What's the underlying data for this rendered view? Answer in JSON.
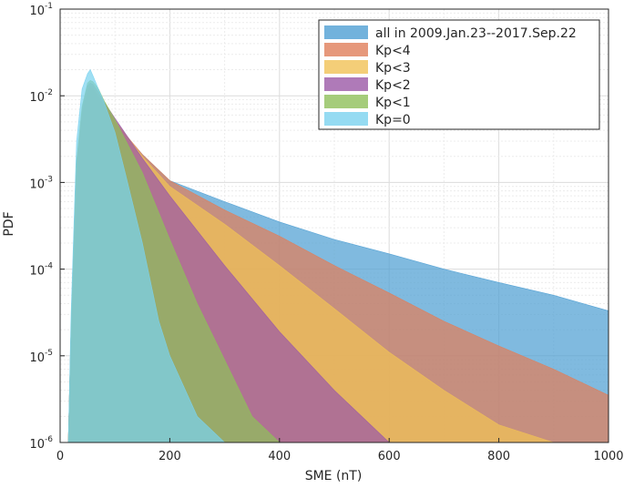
{
  "chart_data": {
    "type": "area",
    "title": "",
    "xlabel": "SME (nT)",
    "ylabel": "PDF",
    "xlim": [
      0,
      1000
    ],
    "ylim": [
      1e-06,
      0.1
    ],
    "yscale": "log",
    "grid": true,
    "legend_position": "top-right",
    "x_ticks": [
      0,
      200,
      400,
      600,
      800,
      1000
    ],
    "y_ticks": [
      {
        "value": 1e-06,
        "base": "10",
        "exp": "-6"
      },
      {
        "value": 1e-05,
        "base": "10",
        "exp": "-5"
      },
      {
        "value": 0.0001,
        "base": "10",
        "exp": "-4"
      },
      {
        "value": 0.001,
        "base": "10",
        "exp": "-3"
      },
      {
        "value": 0.01,
        "base": "10",
        "exp": "-2"
      },
      {
        "value": 0.1,
        "base": "10",
        "exp": "-1"
      }
    ],
    "series": [
      {
        "name": "all in 2009.Jan.23--2017.Sep.22",
        "color": "#4f9fd3",
        "x": [
          15,
          20,
          30,
          40,
          50,
          55,
          60,
          70,
          80,
          100,
          150,
          200,
          300,
          400,
          500,
          600,
          700,
          800,
          900,
          1000
        ],
        "y": [
          1e-06,
          2e-05,
          0.0015,
          0.006,
          0.011,
          0.012,
          0.0115,
          0.0095,
          0.0075,
          0.0048,
          0.0021,
          0.00105,
          0.0006,
          0.00035,
          0.00022,
          0.00015,
          0.0001,
          7e-05,
          5e-05,
          3.3e-05
        ]
      },
      {
        "name": "Kp<4",
        "color": "#e07e5a",
        "x": [
          15,
          20,
          30,
          40,
          50,
          55,
          60,
          70,
          80,
          100,
          150,
          200,
          300,
          400,
          500,
          600,
          700,
          800,
          900,
          1000
        ],
        "y": [
          1e-06,
          2e-05,
          0.0015,
          0.0062,
          0.0115,
          0.0125,
          0.012,
          0.0098,
          0.0078,
          0.005,
          0.0021,
          0.00105,
          0.00048,
          0.00024,
          0.00011,
          5.3e-05,
          2.5e-05,
          1.3e-05,
          7e-06,
          3.5e-06
        ]
      },
      {
        "name": "Kp<3",
        "color": "#f1c256",
        "x": [
          15,
          20,
          30,
          40,
          50,
          55,
          60,
          70,
          80,
          100,
          150,
          200,
          300,
          400,
          500,
          600,
          700,
          800,
          900,
          1000
        ],
        "y": [
          1e-06,
          2e-05,
          0.0016,
          0.0065,
          0.012,
          0.013,
          0.0125,
          0.01,
          0.008,
          0.0052,
          0.002,
          0.0009,
          0.00033,
          0.00011,
          3.5e-05,
          1.1e-05,
          4e-06,
          1.6e-06,
          1e-06,
          1e-06
        ]
      },
      {
        "name": "Kp<2",
        "color": "#9b59a6",
        "x": [
          15,
          20,
          30,
          40,
          50,
          55,
          60,
          70,
          80,
          100,
          150,
          200,
          300,
          400,
          500,
          600,
          700,
          800,
          900,
          1000
        ],
        "y": [
          1e-06,
          2e-05,
          0.0017,
          0.007,
          0.013,
          0.014,
          0.0135,
          0.011,
          0.0085,
          0.0055,
          0.0019,
          0.0007,
          0.00011,
          1.9e-05,
          4e-06,
          1e-06,
          1e-06,
          1e-06,
          1e-06,
          1e-06
        ]
      },
      {
        "name": "Kp<1",
        "color": "#8fbf5a",
        "x": [
          15,
          20,
          30,
          40,
          50,
          55,
          60,
          70,
          80,
          100,
          150,
          200,
          250,
          300,
          350,
          400,
          500,
          600,
          700,
          800,
          900,
          1000
        ],
        "y": [
          1e-06,
          2e-05,
          0.0018,
          0.0075,
          0.014,
          0.015,
          0.0145,
          0.012,
          0.0088,
          0.0053,
          0.0013,
          0.00022,
          4e-05,
          9e-06,
          2e-06,
          1e-06,
          1e-06,
          1e-06,
          1e-06,
          1e-06,
          1e-06,
          1e-06
        ]
      },
      {
        "name": "Kp=0",
        "color": "#7ad2ef",
        "x": [
          15,
          20,
          30,
          40,
          50,
          55,
          60,
          70,
          80,
          100,
          120,
          150,
          180,
          200,
          250,
          300,
          350,
          400,
          500,
          600,
          700,
          800,
          900,
          1000
        ],
        "y": [
          1e-06,
          3e-05,
          0.003,
          0.012,
          0.018,
          0.02,
          0.017,
          0.012,
          0.0085,
          0.0038,
          0.0012,
          0.0002,
          2.5e-05,
          1e-05,
          2e-06,
          1e-06,
          1e-06,
          1e-06,
          1e-06,
          1e-06,
          1e-06,
          1e-06,
          1e-06,
          1e-06
        ]
      }
    ]
  }
}
